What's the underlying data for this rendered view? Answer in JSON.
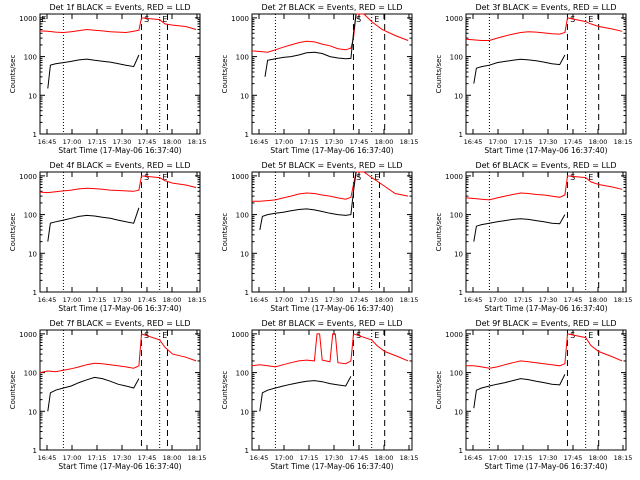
{
  "chart_data": [
    {
      "type": "line",
      "title": "Det 1f BLACK = Events, RED = LLD",
      "xlabel": "Start Time (17-May-06 16:37:40)",
      "ylabel": "Counts/sec",
      "xticks": [
        "16:45",
        "17:00",
        "17:15",
        "17:30",
        "17:45",
        "18:00",
        "18:15"
      ],
      "yticks": [
        "1",
        "10",
        "100",
        "1000"
      ],
      "flags": [
        "E",
        "S",
        "E"
      ],
      "series": [
        {
          "name": "LLD",
          "color": "#ff0000",
          "x": [
            0,
            3,
            6,
            9,
            12,
            15,
            18,
            21,
            24,
            27,
            30,
            33,
            36,
            38,
            39,
            46,
            48,
            51,
            56,
            60
          ],
          "y": [
            460,
            450,
            430,
            420,
            440,
            470,
            500,
            480,
            460,
            440,
            430,
            420,
            450,
            480,
            1000,
            900,
            700,
            650,
            600,
            500
          ]
        },
        {
          "name": "Events",
          "color": "#000000",
          "x": [
            3,
            4,
            6,
            9,
            12,
            15,
            18,
            21,
            24,
            27,
            30,
            33,
            36,
            38
          ],
          "y": [
            15,
            60,
            65,
            70,
            75,
            82,
            86,
            80,
            76,
            72,
            66,
            60,
            55,
            110
          ]
        }
      ],
      "dotted_x": [
        9,
        46
      ],
      "dashed_x": [
        39,
        49
      ]
    },
    {
      "type": "line",
      "title": "Det 2f BLACK = Events, RED = LLD",
      "xlabel": "Start Time (17-May-06 16:37:40)",
      "ylabel": "Counts/sec",
      "xticks": [
        "16:45",
        "17:00",
        "17:15",
        "17:30",
        "17:45",
        "18:00",
        "18:15"
      ],
      "yticks": [
        "1",
        "10",
        "100",
        "1000"
      ],
      "flags": [
        "S",
        "E"
      ],
      "series": [
        {
          "name": "LLD",
          "color": "#ff0000",
          "x": [
            0,
            3,
            6,
            9,
            12,
            15,
            18,
            21,
            24,
            27,
            30,
            33,
            36,
            38,
            39,
            40,
            43,
            46,
            50,
            55,
            60
          ],
          "y": [
            140,
            135,
            130,
            150,
            175,
            200,
            230,
            250,
            240,
            210,
            190,
            160,
            150,
            165,
            300,
            2000,
            1500,
            800,
            500,
            350,
            260
          ]
        },
        {
          "name": "Events",
          "color": "#000000",
          "x": [
            5,
            6,
            9,
            12,
            15,
            18,
            21,
            24,
            27,
            30,
            33,
            36,
            38,
            39,
            40
          ],
          "y": [
            30,
            80,
            88,
            95,
            100,
            110,
            125,
            130,
            120,
            100,
            92,
            88,
            90,
            400,
            2000
          ]
        }
      ],
      "dotted_x": [
        9,
        46
      ],
      "dashed_x": [
        39,
        51
      ]
    },
    {
      "type": "line",
      "title": "Det 3f BLACK = Events, RED = LLD",
      "xlabel": "Start Time (17-May-06 16:37:40)",
      "ylabel": "Counts/sec",
      "xticks": [
        "16:45",
        "17:00",
        "17:15",
        "17:30",
        "17:45",
        "18:00",
        "18:15"
      ],
      "yticks": [
        "1",
        "10",
        "100",
        "1000"
      ],
      "flags": [
        "S",
        "E"
      ],
      "series": [
        {
          "name": "LLD",
          "color": "#ff0000",
          "x": [
            0,
            3,
            6,
            9,
            12,
            15,
            18,
            21,
            24,
            27,
            30,
            33,
            36,
            38,
            39,
            46,
            48,
            51,
            56,
            60
          ],
          "y": [
            280,
            270,
            260,
            260,
            300,
            340,
            380,
            420,
            440,
            430,
            410,
            390,
            380,
            420,
            1000,
            800,
            700,
            600,
            520,
            450
          ]
        },
        {
          "name": "Events",
          "color": "#000000",
          "x": [
            3,
            4,
            6,
            9,
            12,
            15,
            18,
            21,
            24,
            27,
            30,
            33,
            36,
            38
          ],
          "y": [
            20,
            50,
            55,
            60,
            70,
            75,
            80,
            85,
            82,
            78,
            72,
            65,
            62,
            110
          ]
        }
      ],
      "dotted_x": [
        9,
        46
      ],
      "dashed_x": [
        39,
        51
      ]
    },
    {
      "type": "line",
      "title": "Det 4f BLACK = Events, RED = LLD",
      "xlabel": "Start Time (17-May-06 16:37:40)",
      "ylabel": "Counts/sec",
      "xticks": [
        "16:45",
        "17:00",
        "17:15",
        "17:30",
        "17:45",
        "18:00",
        "18:15"
      ],
      "yticks": [
        "1",
        "10",
        "100",
        "1000"
      ],
      "flags": [
        "S",
        "E"
      ],
      "series": [
        {
          "name": "LLD",
          "color": "#ff0000",
          "x": [
            0,
            3,
            6,
            9,
            12,
            15,
            18,
            21,
            24,
            27,
            30,
            33,
            36,
            38,
            39,
            46,
            48,
            51,
            56,
            60
          ],
          "y": [
            380,
            370,
            390,
            410,
            430,
            460,
            480,
            470,
            450,
            430,
            420,
            410,
            400,
            430,
            1000,
            900,
            750,
            650,
            580,
            500
          ]
        },
        {
          "name": "Events",
          "color": "#000000",
          "x": [
            3,
            4,
            6,
            9,
            12,
            15,
            18,
            21,
            24,
            27,
            30,
            33,
            36,
            38
          ],
          "y": [
            20,
            60,
            65,
            72,
            80,
            90,
            95,
            92,
            85,
            80,
            72,
            65,
            60,
            150
          ]
        }
      ],
      "dotted_x": [
        9,
        46
      ],
      "dashed_x": [
        39,
        49
      ]
    },
    {
      "type": "line",
      "title": "Det 5f BLACK = Events, RED = LLD",
      "xlabel": "Start Time (17-May-06 16:37:40)",
      "ylabel": "Counts/sec",
      "xticks": [
        "16:45",
        "17:00",
        "17:15",
        "17:30",
        "17:45",
        "18:00",
        "18:15"
      ],
      "yticks": [
        "1",
        "10",
        "100",
        "1000"
      ],
      "flags": [
        "S",
        "E"
      ],
      "series": [
        {
          "name": "LLD",
          "color": "#ff0000",
          "x": [
            0,
            3,
            6,
            9,
            12,
            15,
            18,
            21,
            24,
            27,
            30,
            33,
            36,
            38,
            39,
            40,
            43,
            46,
            50,
            55,
            60
          ],
          "y": [
            220,
            220,
            230,
            240,
            270,
            300,
            340,
            360,
            350,
            320,
            300,
            270,
            250,
            280,
            600,
            2000,
            1500,
            900,
            600,
            350,
            300
          ]
        },
        {
          "name": "Events",
          "color": "#000000",
          "x": [
            3,
            4,
            6,
            9,
            12,
            15,
            18,
            21,
            24,
            27,
            30,
            33,
            36,
            38,
            39,
            40
          ],
          "y": [
            40,
            90,
            100,
            108,
            115,
            125,
            135,
            140,
            132,
            120,
            108,
            100,
            95,
            100,
            400,
            2000
          ]
        }
      ],
      "dotted_x": [
        9,
        46
      ],
      "dashed_x": [
        39,
        49
      ]
    },
    {
      "type": "line",
      "title": "Det 6f BLACK = Events, RED = LLD",
      "xlabel": "Start Time (17-May-06 16:37:40)",
      "ylabel": "Counts/sec",
      "xticks": [
        "16:45",
        "17:00",
        "17:15",
        "17:30",
        "17:45",
        "18:00",
        "18:15"
      ],
      "yticks": [
        "1",
        "10",
        "100",
        "1000"
      ],
      "flags": [
        "S",
        "E"
      ],
      "series": [
        {
          "name": "LLD",
          "color": "#ff0000",
          "x": [
            0,
            3,
            6,
            9,
            12,
            15,
            18,
            21,
            24,
            27,
            30,
            33,
            36,
            38,
            39,
            46,
            48,
            51,
            56,
            60
          ],
          "y": [
            270,
            260,
            250,
            240,
            270,
            300,
            330,
            360,
            350,
            330,
            320,
            300,
            280,
            320,
            1000,
            900,
            700,
            600,
            520,
            450
          ]
        },
        {
          "name": "Events",
          "color": "#000000",
          "x": [
            3,
            4,
            6,
            9,
            12,
            15,
            18,
            21,
            24,
            27,
            30,
            33,
            36,
            38
          ],
          "y": [
            20,
            50,
            55,
            60,
            65,
            70,
            75,
            78,
            75,
            70,
            65,
            60,
            58,
            100
          ]
        }
      ],
      "dotted_x": [
        9,
        46
      ],
      "dashed_x": [
        39,
        51
      ]
    },
    {
      "type": "line",
      "title": "Det 7f BLACK = Events, RED = LLD",
      "xlabel": "Start Time (17-May-06 16:37:40)",
      "ylabel": "Counts/sec",
      "xticks": [
        "16:45",
        "17:00",
        "17:15",
        "17:30",
        "17:45",
        "18:00",
        "18:15"
      ],
      "yticks": [
        "1",
        "10",
        "100",
        "1000"
      ],
      "flags": [
        "S",
        "E"
      ],
      "series": [
        {
          "name": "LLD",
          "color": "#ff0000",
          "x": [
            0,
            3,
            6,
            9,
            12,
            15,
            18,
            21,
            24,
            27,
            30,
            33,
            36,
            38,
            39,
            46,
            48,
            51,
            56,
            60
          ],
          "y": [
            100,
            110,
            105,
            115,
            125,
            140,
            160,
            175,
            170,
            160,
            150,
            140,
            130,
            150,
            1000,
            700,
            450,
            300,
            250,
            200
          ]
        },
        {
          "name": "Events",
          "color": "#000000",
          "x": [
            3,
            4,
            6,
            9,
            12,
            15,
            18,
            21,
            24,
            27,
            30,
            33,
            36,
            38
          ],
          "y": [
            10,
            30,
            35,
            40,
            45,
            55,
            65,
            75,
            70,
            60,
            50,
            45,
            40,
            70
          ]
        }
      ],
      "dotted_x": [
        9,
        46
      ],
      "dashed_x": [
        39,
        49
      ]
    },
    {
      "type": "line",
      "title": "Det 8f BLACK = Events, RED = LLD",
      "xlabel": "Start Time (17-May-06 16:37:40)",
      "ylabel": "Counts/sec",
      "xticks": [
        "16:45",
        "17:00",
        "17:15",
        "17:30",
        "17:45",
        "18:00",
        "18:15"
      ],
      "yticks": [
        "1",
        "10",
        "100",
        "1000"
      ],
      "flags": [
        "S",
        "E"
      ],
      "series": [
        {
          "name": "LLD",
          "color": "#ff0000",
          "x": [
            0,
            3,
            6,
            9,
            12,
            15,
            18,
            21,
            24,
            25,
            26,
            27,
            30,
            31,
            32,
            33,
            36,
            38,
            39,
            46,
            48,
            51,
            56,
            60
          ],
          "y": [
            150,
            160,
            150,
            140,
            160,
            180,
            200,
            210,
            200,
            1000,
            1000,
            210,
            190,
            1000,
            1000,
            180,
            170,
            200,
            1000,
            700,
            500,
            350,
            260,
            200
          ]
        },
        {
          "name": "Events",
          "color": "#000000",
          "x": [
            3,
            4,
            6,
            9,
            12,
            15,
            18,
            21,
            24,
            27,
            30,
            33,
            36,
            38
          ],
          "y": [
            10,
            30,
            35,
            40,
            45,
            50,
            55,
            60,
            62,
            58,
            52,
            48,
            45,
            80
          ]
        }
      ],
      "dotted_x": [
        9,
        46
      ],
      "dashed_x": [
        39,
        51
      ]
    },
    {
      "type": "line",
      "title": "Det 9f BLACK = Events, RED = LLD",
      "xlabel": "Start Time (17-May-06 16:37:40)",
      "ylabel": "Counts/sec",
      "xticks": [
        "16:45",
        "17:00",
        "17:15",
        "17:30",
        "17:45",
        "18:00",
        "18:15"
      ],
      "yticks": [
        "1",
        "10",
        "100",
        "1000"
      ],
      "flags": [
        "S",
        "E"
      ],
      "series": [
        {
          "name": "LLD",
          "color": "#ff0000",
          "x": [
            0,
            3,
            6,
            9,
            12,
            15,
            18,
            21,
            24,
            27,
            30,
            33,
            36,
            38,
            39,
            46,
            48,
            51,
            56,
            60
          ],
          "y": [
            150,
            150,
            140,
            130,
            140,
            160,
            180,
            200,
            190,
            180,
            170,
            160,
            150,
            170,
            1000,
            800,
            500,
            350,
            260,
            200
          ]
        },
        {
          "name": "Events",
          "color": "#000000",
          "x": [
            3,
            4,
            6,
            9,
            12,
            15,
            18,
            21,
            24,
            27,
            30,
            33,
            36,
            38
          ],
          "y": [
            12,
            35,
            40,
            45,
            50,
            55,
            62,
            70,
            66,
            60,
            55,
            50,
            48,
            90
          ]
        }
      ],
      "dotted_x": [
        9,
        46
      ],
      "dashed_x": [
        39,
        51
      ]
    }
  ]
}
